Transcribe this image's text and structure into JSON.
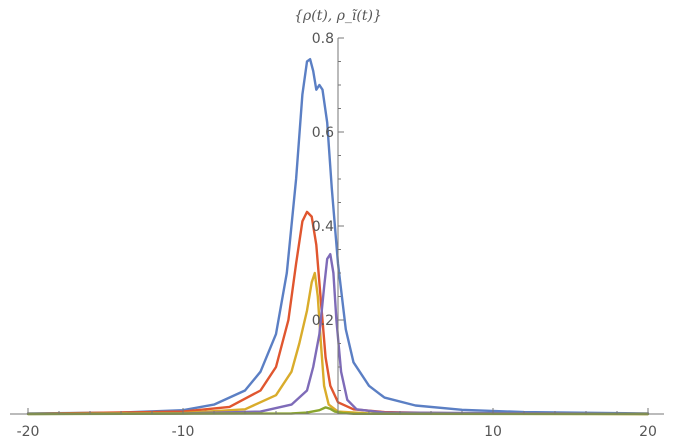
{
  "chart_data": {
    "type": "line",
    "title": "",
    "xlabel": "",
    "ylabel": "{ρ(t), ρ_ĩ(t)}",
    "xlim": [
      -20,
      20
    ],
    "ylim": [
      0,
      0.8
    ],
    "x_ticks": [
      -20,
      -10,
      10,
      20
    ],
    "x_tick_labels": [
      "-20",
      "-10",
      "10",
      "20"
    ],
    "y_ticks": [
      0.2,
      0.4,
      0.6,
      0.8
    ],
    "y_tick_labels": [
      "0.2",
      "0.4",
      "0.6",
      "0.8"
    ],
    "grid": false,
    "legend": "none",
    "series": [
      {
        "color": "#5b7fc4",
        "points": [
          [
            -20,
            0.001
          ],
          [
            -14,
            0.003
          ],
          [
            -10,
            0.008
          ],
          [
            -8,
            0.02
          ],
          [
            -6,
            0.05
          ],
          [
            -5,
            0.09
          ],
          [
            -4,
            0.17
          ],
          [
            -3.3,
            0.3
          ],
          [
            -2.7,
            0.5
          ],
          [
            -2.3,
            0.68
          ],
          [
            -2.0,
            0.75
          ],
          [
            -1.8,
            0.755
          ],
          [
            -1.6,
            0.73
          ],
          [
            -1.4,
            0.69
          ],
          [
            -1.2,
            0.7
          ],
          [
            -1.0,
            0.69
          ],
          [
            -0.7,
            0.62
          ],
          [
            -0.4,
            0.48
          ],
          [
            0,
            0.32
          ],
          [
            0.5,
            0.18
          ],
          [
            1,
            0.11
          ],
          [
            2,
            0.06
          ],
          [
            3,
            0.035
          ],
          [
            5,
            0.018
          ],
          [
            8,
            0.009
          ],
          [
            12,
            0.004
          ],
          [
            20,
            0.001
          ]
        ]
      },
      {
        "color": "#e0562f",
        "points": [
          [
            -20,
            0.0005
          ],
          [
            -10,
            0.005
          ],
          [
            -7,
            0.015
          ],
          [
            -5,
            0.05
          ],
          [
            -4,
            0.1
          ],
          [
            -3.2,
            0.2
          ],
          [
            -2.7,
            0.32
          ],
          [
            -2.3,
            0.41
          ],
          [
            -2.0,
            0.43
          ],
          [
            -1.7,
            0.42
          ],
          [
            -1.4,
            0.36
          ],
          [
            -1.1,
            0.24
          ],
          [
            -0.8,
            0.12
          ],
          [
            -0.5,
            0.06
          ],
          [
            0,
            0.025
          ],
          [
            1,
            0.01
          ],
          [
            3,
            0.004
          ],
          [
            8,
            0.001
          ],
          [
            20,
            0.0002
          ]
        ]
      },
      {
        "color": "#d9ac2b",
        "points": [
          [
            -20,
            0.0002
          ],
          [
            -10,
            0.002
          ],
          [
            -6,
            0.01
          ],
          [
            -4,
            0.04
          ],
          [
            -3,
            0.09
          ],
          [
            -2.5,
            0.15
          ],
          [
            -2.0,
            0.22
          ],
          [
            -1.7,
            0.28
          ],
          [
            -1.5,
            0.3
          ],
          [
            -1.3,
            0.25
          ],
          [
            -1.1,
            0.15
          ],
          [
            -0.9,
            0.06
          ],
          [
            -0.6,
            0.02
          ],
          [
            0,
            0.005
          ],
          [
            2,
            0.001
          ],
          [
            20,
            0.0001
          ]
        ]
      },
      {
        "color": "#7e6bb8",
        "points": [
          [
            -20,
            0.0002
          ],
          [
            -10,
            0.001
          ],
          [
            -5,
            0.005
          ],
          [
            -3,
            0.02
          ],
          [
            -2,
            0.05
          ],
          [
            -1.6,
            0.1
          ],
          [
            -1.2,
            0.17
          ],
          [
            -0.9,
            0.27
          ],
          [
            -0.7,
            0.33
          ],
          [
            -0.5,
            0.34
          ],
          [
            -0.3,
            0.3
          ],
          [
            -0.1,
            0.2
          ],
          [
            0.2,
            0.09
          ],
          [
            0.6,
            0.03
          ],
          [
            1.2,
            0.01
          ],
          [
            3,
            0.003
          ],
          [
            20,
            0.0002
          ]
        ]
      },
      {
        "color": "#8aa52e",
        "points": [
          [
            -20,
            0
          ],
          [
            -3,
            0.001
          ],
          [
            -2,
            0.003
          ],
          [
            -1.2,
            0.008
          ],
          [
            -0.8,
            0.014
          ],
          [
            -0.5,
            0.011
          ],
          [
            -0.2,
            0.005
          ],
          [
            0.3,
            0.002
          ],
          [
            1,
            0.0005
          ],
          [
            20,
            0
          ]
        ]
      }
    ]
  }
}
